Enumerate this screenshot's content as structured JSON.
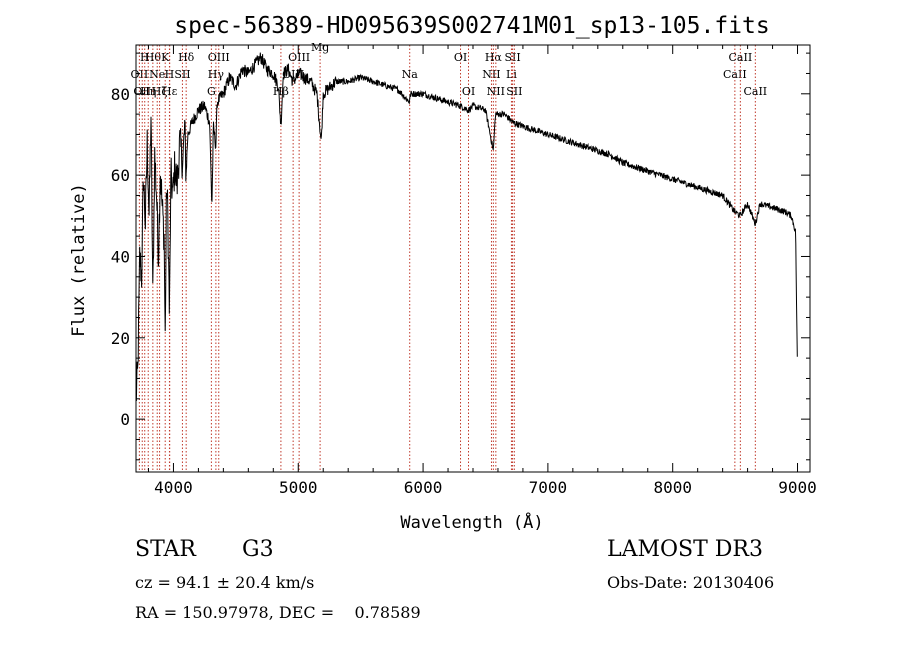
{
  "chart_data": {
    "type": "line",
    "title": "spec-56389-HD095639S002741M01_sp13-105.fits",
    "xlabel": "Wavelength (Å)",
    "ylabel": "Flux (relative)",
    "xlim": [
      3700,
      9100
    ],
    "ylim": [
      -13,
      92
    ],
    "x_ticks": [
      4000,
      5000,
      6000,
      7000,
      8000,
      9000
    ],
    "y_ticks": [
      0,
      20,
      40,
      60,
      80
    ],
    "series": [
      {
        "name": "flux",
        "anchors": [
          [
            3700,
            5
          ],
          [
            3715,
            12
          ],
          [
            3730,
            40
          ],
          [
            3745,
            35
          ],
          [
            3760,
            60
          ],
          [
            3775,
            48
          ],
          [
            3790,
            68
          ],
          [
            3805,
            50
          ],
          [
            3820,
            75
          ],
          [
            3835,
            30
          ],
          [
            3850,
            65
          ],
          [
            3865,
            55
          ],
          [
            3880,
            40
          ],
          [
            3895,
            62
          ],
          [
            3910,
            52
          ],
          [
            3925,
            45
          ],
          [
            3934,
            20
          ],
          [
            3945,
            58
          ],
          [
            3955,
            50
          ],
          [
            3968,
            25
          ],
          [
            3980,
            60
          ],
          [
            3995,
            55
          ],
          [
            4010,
            62
          ],
          [
            4030,
            58
          ],
          [
            4050,
            68
          ],
          [
            4075,
            63
          ],
          [
            4090,
            72
          ],
          [
            4101,
            60
          ],
          [
            4115,
            70
          ],
          [
            4150,
            73
          ],
          [
            4200,
            76
          ],
          [
            4250,
            77
          ],
          [
            4290,
            73
          ],
          [
            4308,
            52
          ],
          [
            4320,
            72
          ],
          [
            4340,
            67
          ],
          [
            4350,
            78
          ],
          [
            4400,
            80
          ],
          [
            4450,
            84
          ],
          [
            4500,
            82
          ],
          [
            4550,
            86
          ],
          [
            4600,
            85
          ],
          [
            4650,
            87
          ],
          [
            4700,
            89
          ],
          [
            4750,
            86
          ],
          [
            4800,
            85
          ],
          [
            4840,
            82
          ],
          [
            4861,
            72
          ],
          [
            4880,
            85
          ],
          [
            4920,
            86
          ],
          [
            4957,
            83
          ],
          [
            5007,
            85
          ],
          [
            5050,
            84
          ],
          [
            5100,
            83
          ],
          [
            5150,
            80
          ],
          [
            5167,
            74
          ],
          [
            5184,
            68
          ],
          [
            5200,
            80
          ],
          [
            5300,
            83
          ],
          [
            5400,
            83
          ],
          [
            5500,
            84
          ],
          [
            5600,
            83
          ],
          [
            5700,
            82
          ],
          [
            5800,
            81
          ],
          [
            5890,
            78
          ],
          [
            5900,
            80
          ],
          [
            6000,
            80
          ],
          [
            6100,
            79
          ],
          [
            6200,
            78
          ],
          [
            6300,
            77
          ],
          [
            6364,
            76
          ],
          [
            6400,
            77
          ],
          [
            6500,
            76
          ],
          [
            6563,
            66
          ],
          [
            6580,
            75
          ],
          [
            6650,
            75
          ],
          [
            6720,
            73
          ],
          [
            6800,
            72
          ],
          [
            6900,
            71
          ],
          [
            7000,
            70
          ],
          [
            7100,
            69
          ],
          [
            7200,
            68
          ],
          [
            7300,
            67
          ],
          [
            7400,
            66
          ],
          [
            7500,
            65
          ],
          [
            7600,
            63
          ],
          [
            7700,
            62
          ],
          [
            7800,
            61
          ],
          [
            7900,
            60
          ],
          [
            8000,
            59
          ],
          [
            8100,
            58
          ],
          [
            8200,
            57
          ],
          [
            8300,
            56
          ],
          [
            8400,
            55
          ],
          [
            8498,
            51
          ],
          [
            8542,
            50
          ],
          [
            8600,
            53
          ],
          [
            8662,
            48
          ],
          [
            8700,
            53
          ],
          [
            8800,
            52
          ],
          [
            8900,
            51
          ],
          [
            8950,
            50
          ],
          [
            8985,
            46
          ],
          [
            8995,
            22
          ],
          [
            9000,
            10
          ]
        ]
      }
    ],
    "line_markers": [
      {
        "wavelength": 3727,
        "label": "OII",
        "row": 2
      },
      {
        "wavelength": 3750,
        "label": "OII",
        "row": 3
      },
      {
        "wavelength": 3770,
        "label": "H",
        "row": 1
      },
      {
        "wavelength": 3798,
        "label": "Hη",
        "row": 3
      },
      {
        "wavelength": 3835,
        "label": "Hθ",
        "row": 1
      },
      {
        "wavelength": 3870,
        "label": "Ne",
        "row": 2
      },
      {
        "wavelength": 3889,
        "label": "Hζ",
        "row": 3
      },
      {
        "wavelength": 3934,
        "label": "K",
        "row": 1
      },
      {
        "wavelength": 3968,
        "label": "H",
        "row": 2
      },
      {
        "wavelength": 3970,
        "label": "Hε",
        "row": 3
      },
      {
        "wavelength": 4072,
        "label": "SII",
        "row": 2
      },
      {
        "wavelength": 4102,
        "label": "Hδ",
        "row": 1
      },
      {
        "wavelength": 4304,
        "label": "G",
        "row": 3
      },
      {
        "wavelength": 4340,
        "label": "Hγ",
        "row": 2
      },
      {
        "wavelength": 4363,
        "label": "OIII",
        "row": 1
      },
      {
        "wavelength": 4861,
        "label": "Hβ",
        "row": 3
      },
      {
        "wavelength": 4959,
        "label": "OIII",
        "row": 2
      },
      {
        "wavelength": 5007,
        "label": "OIII",
        "row": 1
      },
      {
        "wavelength": 5175,
        "label": "Mg",
        "row": 0
      },
      {
        "wavelength": 5893,
        "label": "Na",
        "row": 2
      },
      {
        "wavelength": 6300,
        "label": "OI",
        "row": 1
      },
      {
        "wavelength": 6364,
        "label": "OI",
        "row": 3
      },
      {
        "wavelength": 6548,
        "label": "NII",
        "row": 2
      },
      {
        "wavelength": 6563,
        "label": "Hα",
        "row": 1
      },
      {
        "wavelength": 6583,
        "label": "NII",
        "row": 3
      },
      {
        "wavelength": 6708,
        "label": "Li",
        "row": 2
      },
      {
        "wavelength": 6717,
        "label": "SII",
        "row": 1
      },
      {
        "wavelength": 6731,
        "label": "SII",
        "row": 3
      },
      {
        "wavelength": 8498,
        "label": "CaII",
        "row": 2
      },
      {
        "wavelength": 8542,
        "label": "CaII",
        "row": 1
      },
      {
        "wavelength": 8662,
        "label": "CaII",
        "row": 3
      }
    ]
  },
  "info": {
    "object_class": "STAR",
    "subclass": "G3",
    "survey": "LAMOST DR3",
    "cz": "cz = 94.1 ± 20.4 km/s",
    "obs_date": "Obs-Date: 20130406",
    "coords": "RA = 150.97978, DEC =    0.78589"
  },
  "colors": {
    "axes": "#000000",
    "spectrum": "#000000",
    "marker_line": "#c0392b",
    "background": "#ffffff"
  }
}
